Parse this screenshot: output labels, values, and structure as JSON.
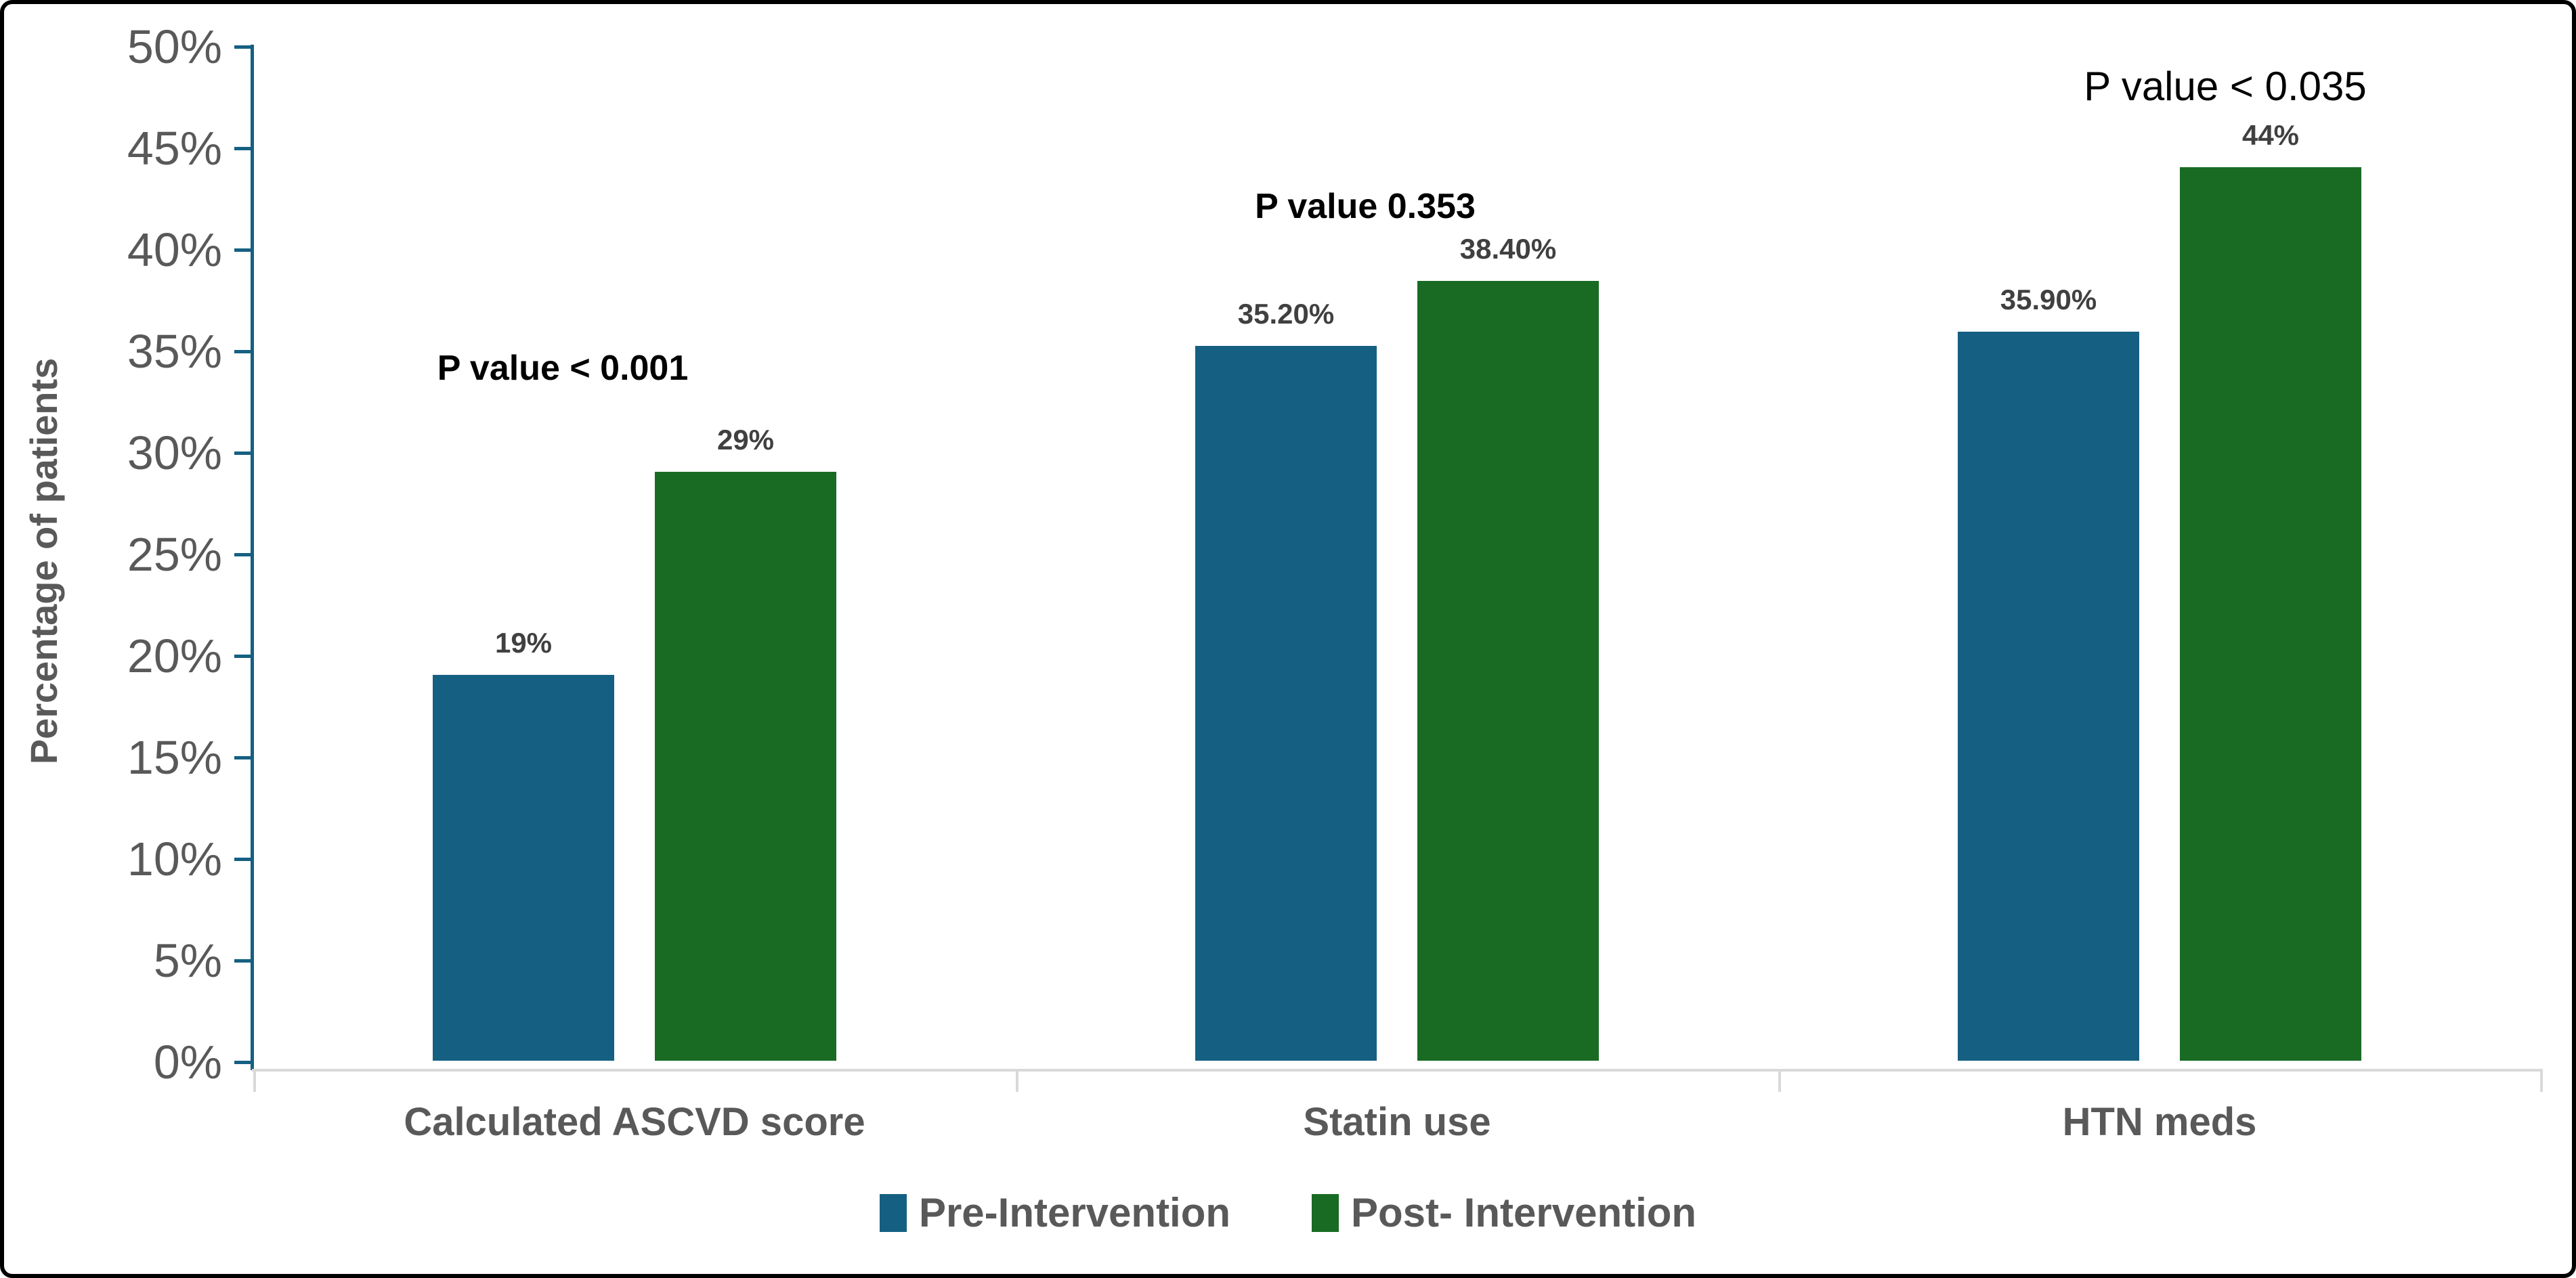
{
  "chart_data": {
    "type": "bar",
    "title": "",
    "xlabel": "",
    "ylabel": "Percentage of patients",
    "ylim": [
      0,
      50
    ],
    "ytick_step": 5,
    "yticks": [
      "0%",
      "5%",
      "10%",
      "15%",
      "20%",
      "25%",
      "30%",
      "35%",
      "40%",
      "45%",
      "50%"
    ],
    "categories": [
      "Calculated ASCVD score",
      "Statin use",
      "HTN meds"
    ],
    "series": [
      {
        "name": "Pre-Intervention",
        "color": "#156082",
        "values": [
          19,
          35.2,
          35.9
        ],
        "labels": [
          "19%",
          "35.20%",
          "35.90%"
        ]
      },
      {
        "name": "Post- Intervention",
        "color": "#196B24",
        "values": [
          29,
          38.4,
          44
        ],
        "labels": [
          "29%",
          "38.40%",
          "44%"
        ]
      }
    ],
    "annotations": [
      {
        "text": "P value < 0.001",
        "category": "Calculated ASCVD score"
      },
      {
        "text": "P value 0.353",
        "category": "Statin use"
      },
      {
        "text": "P value < 0.035",
        "category": "HTN meds"
      }
    ],
    "grid": false,
    "legend_position": "bottom"
  },
  "colors": {
    "pre_intervention": "#156082",
    "post_intervention": "#196B24",
    "y_axis_line": "#156082",
    "x_axis_line": "#D9D9D9",
    "tick_label": "#595959",
    "category_label": "#595959",
    "data_label": "#404040",
    "annotation_text": "#000000",
    "legend_label": "#595959",
    "frame_border": "#000000",
    "background": "#FFFFFF"
  }
}
